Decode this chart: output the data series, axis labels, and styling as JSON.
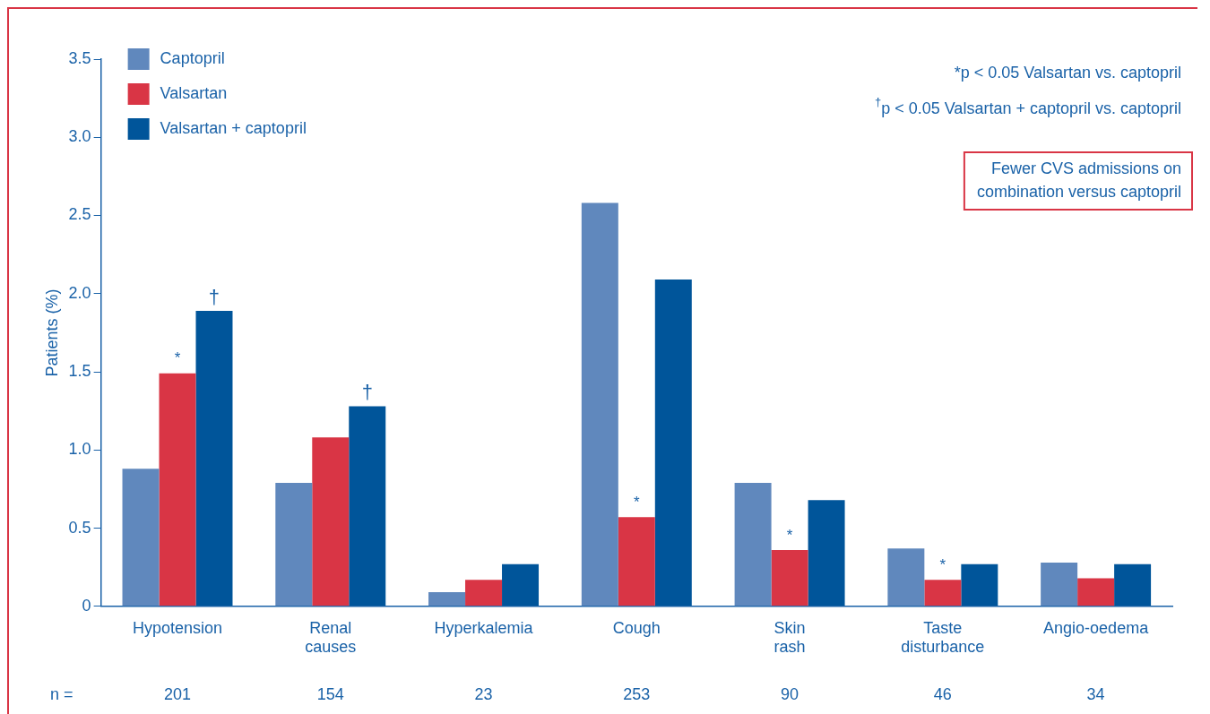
{
  "chart_data": {
    "type": "bar",
    "ylabel": "Patients (%)",
    "categories": [
      "Hypotension",
      "Renal causes",
      "Hyperkalemia",
      "Cough",
      "Skin rash",
      "Taste disturbance",
      "Angio-oedema"
    ],
    "series": [
      {
        "name": "Captopril",
        "color": "#6088bd",
        "values": [
          0.88,
          0.79,
          0.09,
          2.58,
          0.79,
          0.37,
          0.28
        ]
      },
      {
        "name": "Valsartan",
        "color": "#d93545",
        "values": [
          1.49,
          1.08,
          0.17,
          0.57,
          0.36,
          0.17,
          0.18
        ]
      },
      {
        "name": "Valsartan + captopril",
        "color": "#00559a",
        "values": [
          1.89,
          1.28,
          0.27,
          2.09,
          0.68,
          0.27,
          0.27
        ]
      }
    ],
    "ylim": [
      0,
      3.5
    ],
    "yticks": [
      {
        "value": 0,
        "label": "0"
      },
      {
        "value": 0.5,
        "label": "0.5"
      },
      {
        "value": 1,
        "label": "1.0"
      },
      {
        "value": 1.5,
        "label": "1.5"
      },
      {
        "value": 2,
        "label": "2.0"
      },
      {
        "value": 2.5,
        "label": "2.5"
      },
      {
        "value": 3,
        "label": "3.0"
      },
      {
        "value": 3.5,
        "label": "3.5"
      }
    ],
    "grid": false,
    "legend": "top left",
    "annotations": [
      "*p < 0.05 Valsartan vs. captopril",
      "$^{†}$p < 0.05 Valsartan + captopril vs. captopril",
      "Fewer CVS admissions on\ncombination versus captopril",
      "n =",
      "†",
      "†",
      "201",
      "154",
      "23",
      "253",
      "90",
      "46",
      "34",
      {
        "text": "*",
        "x": "Hypotension",
        "y": 1.49
      },
      {
        "text": "*",
        "x": "Cough",
        "y": 0.57
      },
      {
        "text": "*",
        "x": "Skin rash",
        "y": 0.36
      },
      {
        "text": "*",
        "x": "Taste disturbance",
        "y": 0.17
      }
    ]
  }
}
